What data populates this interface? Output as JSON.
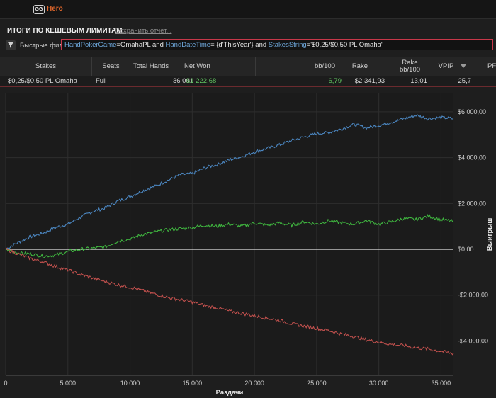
{
  "app": {
    "logo_text": "GG",
    "user": "Hero"
  },
  "report": {
    "title": "ИТОГИ ПО КЕШЕВЫМ ЛИМИТАМ",
    "save_link": "Сохранить отчет..."
  },
  "filter": {
    "label": "Быстрые фильт",
    "k1": "HandPokerGame",
    "v1": "=OmahaPL and ",
    "k2": "HandDateTime",
    "v2": "= {d'ThisYear'} and ",
    "k3": "StakesString",
    "v3": "='$0,25/$0,50 PL Omaha'"
  },
  "table": {
    "headers": {
      "stakes": "Stakes",
      "seats": "Seats",
      "total_hands": "Total Hands",
      "net_won": "Net Won",
      "bb100": "bb/100",
      "rake": "Rake",
      "rake_bb100": "Rake bb/100",
      "vpip": "VPIP",
      "pfr": "PFR"
    },
    "row": {
      "stakes": "$0,25/$0,50 PL Omaha",
      "seats": "Full",
      "total_hands": "36 001",
      "net_won": "$1 222,68",
      "bb100": "6,79",
      "rake": "$2 341,93",
      "rake_bb100": "13,01",
      "vpip": "25,7"
    }
  },
  "colors": {
    "blue": "#4b86c0",
    "green": "#3fb53f",
    "red": "#c0504d",
    "accent": "#e0662b",
    "border": "#c8384a"
  },
  "icons": {
    "filter": "funnel-icon",
    "sort": "chevron-down-icon"
  },
  "chart_data": {
    "type": "line",
    "xlabel": "Раздачи",
    "ylabel": "Выигрыш",
    "xlim": [
      0,
      36001
    ],
    "ylim": [
      -5500,
      6800
    ],
    "x_ticks": [
      0,
      5000,
      10000,
      15000,
      20000,
      25000,
      30000,
      35000
    ],
    "x_tick_labels": [
      "0",
      "5 000",
      "10 000",
      "15 000",
      "20 000",
      "25 000",
      "30 000",
      "35 000"
    ],
    "y_ticks": [
      6000,
      4000,
      2000,
      0,
      -2000,
      -4000
    ],
    "y_tick_labels": [
      "$6 000,00",
      "$4 000,00",
      "$2 000,00",
      "$0,00",
      "-$2 000,00",
      "-$4 000,00"
    ],
    "grid": true,
    "series": [
      {
        "color": "#4b86c0",
        "x": [
          0,
          1000,
          2000,
          3000,
          4000,
          5000,
          6000,
          7000,
          8000,
          9000,
          10000,
          11000,
          12000,
          13000,
          14000,
          15000,
          16000,
          17000,
          18000,
          19000,
          20000,
          21000,
          22000,
          23000,
          24000,
          25000,
          26000,
          27000,
          28000,
          29000,
          30000,
          31000,
          32000,
          33000,
          34000,
          35000,
          36001
        ],
        "values": [
          0,
          300,
          550,
          700,
          950,
          1100,
          1400,
          1650,
          1800,
          2100,
          2300,
          2550,
          2750,
          3000,
          3250,
          3300,
          3550,
          3700,
          3900,
          4050,
          4250,
          4400,
          4550,
          4750,
          4900,
          5050,
          5100,
          5250,
          5450,
          5300,
          5400,
          5550,
          5700,
          5850,
          5700,
          5750,
          5700
        ]
      },
      {
        "color": "#3fb53f",
        "x": [
          0,
          1000,
          2000,
          3000,
          4000,
          5000,
          6000,
          7000,
          8000,
          9000,
          10000,
          11000,
          12000,
          13000,
          14000,
          15000,
          16000,
          17000,
          18000,
          19000,
          20000,
          21000,
          22000,
          23000,
          24000,
          25000,
          26000,
          27000,
          28000,
          29000,
          30000,
          31000,
          32000,
          33000,
          34000,
          35000,
          36001
        ],
        "values": [
          0,
          -150,
          -200,
          -300,
          -250,
          -100,
          0,
          50,
          100,
          350,
          450,
          650,
          750,
          850,
          900,
          950,
          1050,
          1000,
          1100,
          1000,
          1150,
          1050,
          1150,
          1050,
          1200,
          1100,
          1250,
          1150,
          1100,
          1250,
          1100,
          1200,
          1350,
          1300,
          1450,
          1300,
          1220
        ]
      },
      {
        "color": "#c0504d",
        "x": [
          0,
          1000,
          2000,
          3000,
          4000,
          5000,
          6000,
          7000,
          8000,
          9000,
          10000,
          11000,
          12000,
          13000,
          14000,
          15000,
          16000,
          17000,
          18000,
          19000,
          20000,
          21000,
          22000,
          23000,
          24000,
          25000,
          26000,
          27000,
          28000,
          29000,
          30000,
          31000,
          32000,
          33000,
          34000,
          35000,
          36001
        ],
        "values": [
          0,
          -200,
          -400,
          -550,
          -750,
          -900,
          -1100,
          -1250,
          -1400,
          -1550,
          -1650,
          -1800,
          -1950,
          -2100,
          -2200,
          -2300,
          -2450,
          -2550,
          -2700,
          -2800,
          -2900,
          -3000,
          -3100,
          -3250,
          -3350,
          -3450,
          -3550,
          -3700,
          -3800,
          -3950,
          -4050,
          -4150,
          -4200,
          -4300,
          -4350,
          -4450,
          -4550
        ]
      }
    ]
  }
}
